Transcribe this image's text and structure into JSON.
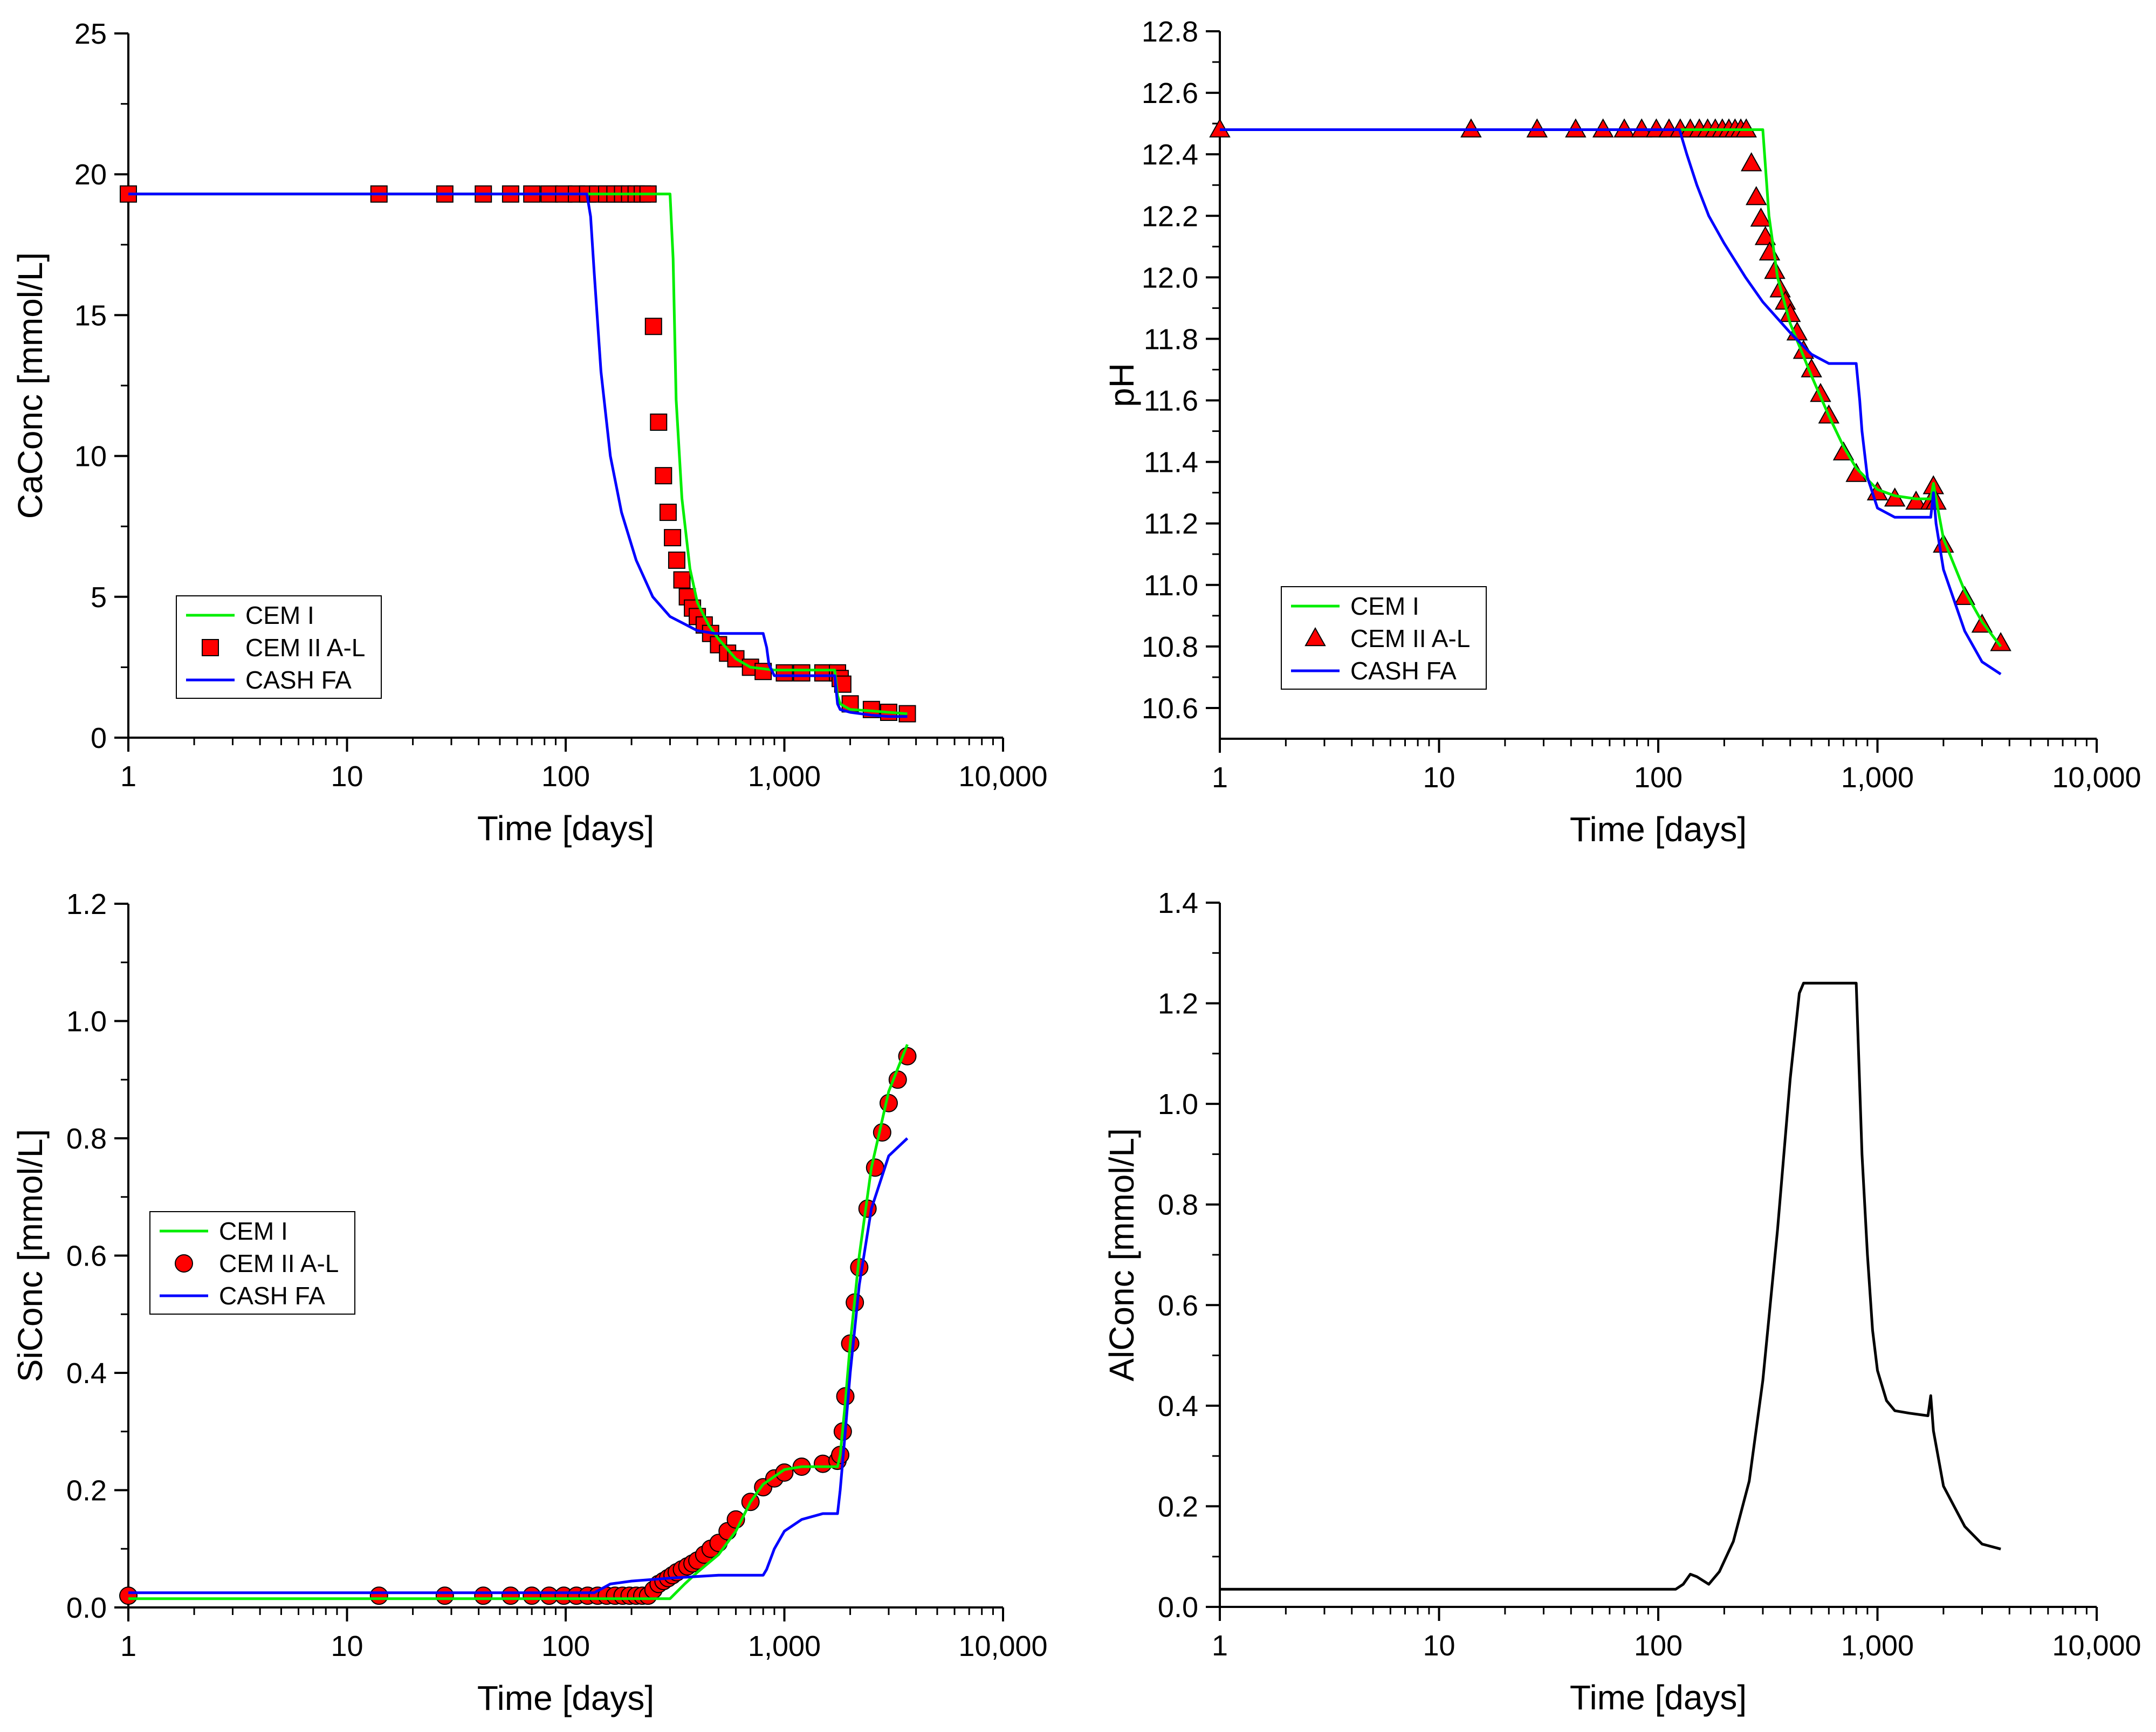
{
  "colors": {
    "cem1": "#00ee00",
    "cem2_fill": "#ff0000",
    "cem2_edge": "#000000",
    "cash": "#0000ff",
    "al_line": "#000000",
    "axis": "#000000"
  },
  "chart_data": [
    {
      "type": "line",
      "panel": "top-left",
      "xlabel": "Time [days]",
      "ylabel": "CaConc [mmol/L]",
      "xscale": "log",
      "xlim": [
        1,
        10000
      ],
      "ylim": [
        0,
        25
      ],
      "xticks": [
        1,
        10,
        100,
        1000,
        10000
      ],
      "xtick_labels": [
        "1",
        "10",
        "100",
        "1,000",
        "10,000"
      ],
      "yticks": [
        0,
        5,
        10,
        15,
        20,
        25
      ],
      "ytick_labels": [
        "0",
        "5",
        "10",
        "15",
        "20",
        "25"
      ],
      "legend": {
        "position": "bottom-left",
        "entries": [
          "CEM I",
          "CEM II A-L",
          "CASH FA"
        ]
      },
      "series": [
        {
          "name": "CEM I",
          "style": "line",
          "color": "#00ee00",
          "x": [
            1,
            300,
            310,
            320,
            340,
            370,
            400,
            450,
            500,
            600,
            700,
            900,
            1000,
            1700,
            1750,
            1800,
            2000,
            2500,
            3000,
            3650
          ],
          "y": [
            19.3,
            19.3,
            17.0,
            12.0,
            8.5,
            6.0,
            4.8,
            4.0,
            3.5,
            2.8,
            2.5,
            2.4,
            2.4,
            2.4,
            1.5,
            1.2,
            1.0,
            0.95,
            0.9,
            0.85
          ]
        },
        {
          "name": "CEM II A-L",
          "style": "markers",
          "marker": "square",
          "color": "#ff0000",
          "x": [
            1,
            14,
            28,
            42,
            56,
            70,
            84,
            98,
            112,
            126,
            140,
            154,
            168,
            182,
            196,
            210,
            224,
            238,
            252,
            266,
            280,
            294,
            308,
            322,
            340,
            360,
            380,
            400,
            430,
            460,
            500,
            550,
            600,
            700,
            800,
            1000,
            1200,
            1500,
            1750,
            1800,
            1850,
            2000,
            2500,
            3000,
            3650
          ],
          "y": [
            19.3,
            19.3,
            19.3,
            19.3,
            19.3,
            19.3,
            19.3,
            19.3,
            19.3,
            19.3,
            19.3,
            19.3,
            19.3,
            19.3,
            19.3,
            19.3,
            19.3,
            19.3,
            14.6,
            11.2,
            9.3,
            8.0,
            7.1,
            6.3,
            5.6,
            5.0,
            4.6,
            4.3,
            4.0,
            3.7,
            3.3,
            3.0,
            2.8,
            2.5,
            2.35,
            2.3,
            2.3,
            2.3,
            2.3,
            2.1,
            1.9,
            1.2,
            1.0,
            0.9,
            0.85
          ]
        },
        {
          "name": "CASH FA",
          "style": "line",
          "color": "#0000ff",
          "x": [
            1,
            125,
            130,
            135,
            145,
            160,
            180,
            210,
            250,
            300,
            400,
            480,
            520,
            800,
            830,
            850,
            900,
            1000,
            1700,
            1750,
            1800,
            2000,
            2500,
            3000,
            3650
          ],
          "y": [
            19.3,
            19.3,
            18.5,
            16.5,
            13.0,
            10.0,
            8.0,
            6.3,
            5.0,
            4.3,
            3.8,
            3.7,
            3.7,
            3.7,
            3.2,
            2.6,
            2.2,
            2.2,
            2.2,
            1.2,
            1.0,
            0.9,
            0.8,
            0.75,
            0.75
          ]
        }
      ]
    },
    {
      "type": "line",
      "panel": "top-right",
      "xlabel": "Time [days]",
      "ylabel": "pH",
      "xscale": "log",
      "xlim": [
        1,
        10000
      ],
      "ylim": [
        10.5,
        12.8
      ],
      "xticks": [
        1,
        10,
        100,
        1000,
        10000
      ],
      "xtick_labels": [
        "1",
        "10",
        "100",
        "1,000",
        "10,000"
      ],
      "yticks": [
        10.6,
        10.8,
        11.0,
        11.2,
        11.4,
        11.6,
        11.8,
        12.0,
        12.2,
        12.4,
        12.6,
        12.8
      ],
      "ytick_labels": [
        "10.6",
        "10.8",
        "11.0",
        "11.2",
        "11.4",
        "11.6",
        "11.8",
        "12.0",
        "12.2",
        "12.4",
        "12.6",
        "12.8"
      ],
      "legend": {
        "position": "bottom-left",
        "entries": [
          "CEM I",
          "CEM II A-L",
          "CASH FA"
        ]
      },
      "series": [
        {
          "name": "CEM I",
          "style": "line",
          "color": "#00ee00",
          "x": [
            1,
            300,
            320,
            350,
            400,
            450,
            500,
            600,
            700,
            800,
            1000,
            1200,
            1500,
            1750,
            1800,
            1850,
            2000,
            2500,
            3000,
            3650
          ],
          "y": [
            12.48,
            12.48,
            12.2,
            12.0,
            11.85,
            11.76,
            11.68,
            11.55,
            11.45,
            11.38,
            11.31,
            11.29,
            11.28,
            11.28,
            11.33,
            11.28,
            11.15,
            10.98,
            10.88,
            10.8
          ]
        },
        {
          "name": "CEM II A-L",
          "style": "markers",
          "marker": "triangle",
          "color": "#ff0000",
          "x": [
            1,
            14,
            28,
            42,
            56,
            70,
            84,
            98,
            112,
            126,
            140,
            154,
            168,
            182,
            196,
            210,
            224,
            238,
            252,
            266,
            280,
            294,
            308,
            322,
            340,
            360,
            380,
            400,
            430,
            460,
            500,
            550,
            600,
            700,
            800,
            1000,
            1200,
            1500,
            1750,
            1800,
            1850,
            2000,
            2500,
            3000,
            3650
          ],
          "y": [
            12.48,
            12.48,
            12.48,
            12.48,
            12.48,
            12.48,
            12.48,
            12.48,
            12.48,
            12.48,
            12.48,
            12.48,
            12.48,
            12.48,
            12.48,
            12.48,
            12.48,
            12.48,
            12.48,
            12.37,
            12.26,
            12.19,
            12.13,
            12.08,
            12.02,
            11.96,
            11.92,
            11.88,
            11.82,
            11.76,
            11.7,
            11.62,
            11.55,
            11.43,
            11.36,
            11.3,
            11.28,
            11.27,
            11.27,
            11.32,
            11.27,
            11.13,
            10.96,
            10.87,
            10.81
          ]
        },
        {
          "name": "CASH FA",
          "style": "line",
          "color": "#0000ff",
          "x": [
            1,
            125,
            135,
            150,
            170,
            200,
            250,
            300,
            400,
            500,
            600,
            800,
            830,
            850,
            900,
            1000,
            1200,
            1500,
            1750,
            1800,
            1850,
            2000,
            2500,
            3000,
            3650
          ],
          "y": [
            12.48,
            12.48,
            12.4,
            12.3,
            12.2,
            12.11,
            12.0,
            11.92,
            11.82,
            11.75,
            11.72,
            11.72,
            11.6,
            11.5,
            11.35,
            11.25,
            11.22,
            11.22,
            11.22,
            11.3,
            11.2,
            11.05,
            10.85,
            10.75,
            10.71
          ]
        }
      ]
    },
    {
      "type": "line",
      "panel": "bottom-left",
      "xlabel": "Time [days]",
      "ylabel": "SiConc [mmol/L]",
      "xscale": "log",
      "xlim": [
        1,
        10000
      ],
      "ylim": [
        0,
        1.2
      ],
      "xticks": [
        1,
        10,
        100,
        1000,
        10000
      ],
      "xtick_labels": [
        "1",
        "10",
        "100",
        "1,000",
        "10,000"
      ],
      "yticks": [
        0.0,
        0.2,
        0.4,
        0.6,
        0.8,
        1.0,
        1.2
      ],
      "ytick_labels": [
        "0.0",
        "0.2",
        "0.4",
        "0.6",
        "0.8",
        "1.0",
        "1.2"
      ],
      "legend": {
        "position": "center-left",
        "entries": [
          "CEM I",
          "CEM II A-L",
          "CASH FA"
        ]
      },
      "series": [
        {
          "name": "CEM I",
          "style": "line",
          "color": "#00ee00",
          "x": [
            1,
            300,
            350,
            400,
            500,
            600,
            700,
            800,
            1000,
            1200,
            1500,
            1750,
            1800,
            1900,
            2000,
            2200,
            2500,
            3000,
            3650
          ],
          "y": [
            0.015,
            0.015,
            0.04,
            0.06,
            0.09,
            0.13,
            0.18,
            0.21,
            0.235,
            0.24,
            0.24,
            0.24,
            0.26,
            0.35,
            0.45,
            0.6,
            0.75,
            0.88,
            0.96
          ]
        },
        {
          "name": "CEM II A-L",
          "style": "markers",
          "marker": "circle",
          "color": "#ff0000",
          "x": [
            1,
            14,
            28,
            42,
            56,
            70,
            84,
            98,
            112,
            126,
            140,
            154,
            168,
            182,
            196,
            210,
            224,
            238,
            252,
            266,
            280,
            294,
            308,
            322,
            340,
            360,
            380,
            400,
            430,
            460,
            500,
            550,
            600,
            700,
            800,
            900,
            1000,
            1200,
            1500,
            1750,
            1800,
            1850,
            1900,
            2000,
            2100,
            2200,
            2400,
            2600,
            2800,
            3000,
            3300,
            3650
          ],
          "y": [
            0.02,
            0.02,
            0.02,
            0.02,
            0.02,
            0.02,
            0.02,
            0.02,
            0.02,
            0.02,
            0.02,
            0.02,
            0.02,
            0.02,
            0.02,
            0.02,
            0.02,
            0.02,
            0.03,
            0.04,
            0.045,
            0.05,
            0.055,
            0.06,
            0.065,
            0.07,
            0.075,
            0.08,
            0.09,
            0.1,
            0.11,
            0.13,
            0.15,
            0.18,
            0.205,
            0.22,
            0.23,
            0.24,
            0.245,
            0.25,
            0.26,
            0.3,
            0.36,
            0.45,
            0.52,
            0.58,
            0.68,
            0.75,
            0.81,
            0.86,
            0.9,
            0.94
          ]
        },
        {
          "name": "CASH FA",
          "style": "line",
          "color": "#0000ff",
          "x": [
            1,
            135,
            160,
            200,
            300,
            500,
            800,
            830,
            900,
            1000,
            1200,
            1500,
            1750,
            1800,
            1900,
            2000,
            2200,
            2500,
            3000,
            3650
          ],
          "y": [
            0.025,
            0.025,
            0.04,
            0.045,
            0.05,
            0.055,
            0.055,
            0.065,
            0.1,
            0.13,
            0.15,
            0.16,
            0.16,
            0.2,
            0.3,
            0.4,
            0.55,
            0.68,
            0.77,
            0.8
          ]
        }
      ]
    },
    {
      "type": "line",
      "panel": "bottom-right",
      "xlabel": "Time [days]",
      "ylabel": "AlConc [mmol/L]",
      "xscale": "log",
      "xlim": [
        1,
        10000
      ],
      "ylim": [
        0,
        1.4
      ],
      "xticks": [
        1,
        10,
        100,
        1000,
        10000
      ],
      "xtick_labels": [
        "1",
        "10",
        "100",
        "1,000",
        "10,000"
      ],
      "yticks": [
        0.0,
        0.2,
        0.4,
        0.6,
        0.8,
        1.0,
        1.2,
        1.4
      ],
      "ytick_labels": [
        "0.0",
        "0.2",
        "0.4",
        "0.6",
        "0.8",
        "1.0",
        "1.2",
        "1.4"
      ],
      "legend": null,
      "series": [
        {
          "name": "AlConc",
          "style": "line",
          "color": "#000000",
          "x": [
            1,
            120,
            130,
            140,
            150,
            170,
            190,
            220,
            260,
            300,
            350,
            400,
            440,
            460,
            480,
            500,
            800,
            820,
            850,
            900,
            950,
            1000,
            1100,
            1200,
            1400,
            1700,
            1750,
            1800,
            2000,
            2500,
            3000,
            3650
          ],
          "y": [
            0.035,
            0.035,
            0.045,
            0.065,
            0.06,
            0.045,
            0.07,
            0.13,
            0.25,
            0.45,
            0.75,
            1.05,
            1.22,
            1.24,
            1.24,
            1.24,
            1.24,
            1.1,
            0.9,
            0.7,
            0.55,
            0.47,
            0.41,
            0.39,
            0.385,
            0.38,
            0.42,
            0.35,
            0.24,
            0.16,
            0.125,
            0.115
          ]
        }
      ]
    }
  ]
}
